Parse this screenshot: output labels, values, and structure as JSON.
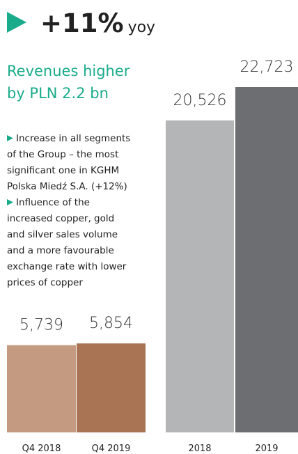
{
  "header": {
    "headline": "+11%",
    "unit": "yoy",
    "subtitle": [
      "Revenues higher",
      "by PLN 2.2 bn"
    ]
  },
  "bullets": [
    [
      "Increase in all segments",
      "of the Group – the most",
      "significant one in KGHM",
      "Polska Miedź S.A. (+12%)"
    ],
    [
      "Influence of the",
      "increased copper, gold",
      "and silver sales volume",
      "and a more favourable",
      "exchange rate with lower",
      "prices of copper"
    ]
  ],
  "chart_data": [
    {
      "type": "bar",
      "categories": [
        "Q4 2018",
        "Q4 2019"
      ],
      "values": [
        5739,
        5854
      ],
      "value_labels": [
        "5,739",
        "5,854"
      ],
      "colors": [
        "#c49b80",
        "#a87453"
      ]
    },
    {
      "type": "bar",
      "categories": [
        "2018",
        "2019"
      ],
      "values": [
        20526,
        22723
      ],
      "value_labels": [
        "20,526",
        "22,723"
      ],
      "colors": [
        "#b3b5b7",
        "#6d6e71"
      ]
    }
  ]
}
